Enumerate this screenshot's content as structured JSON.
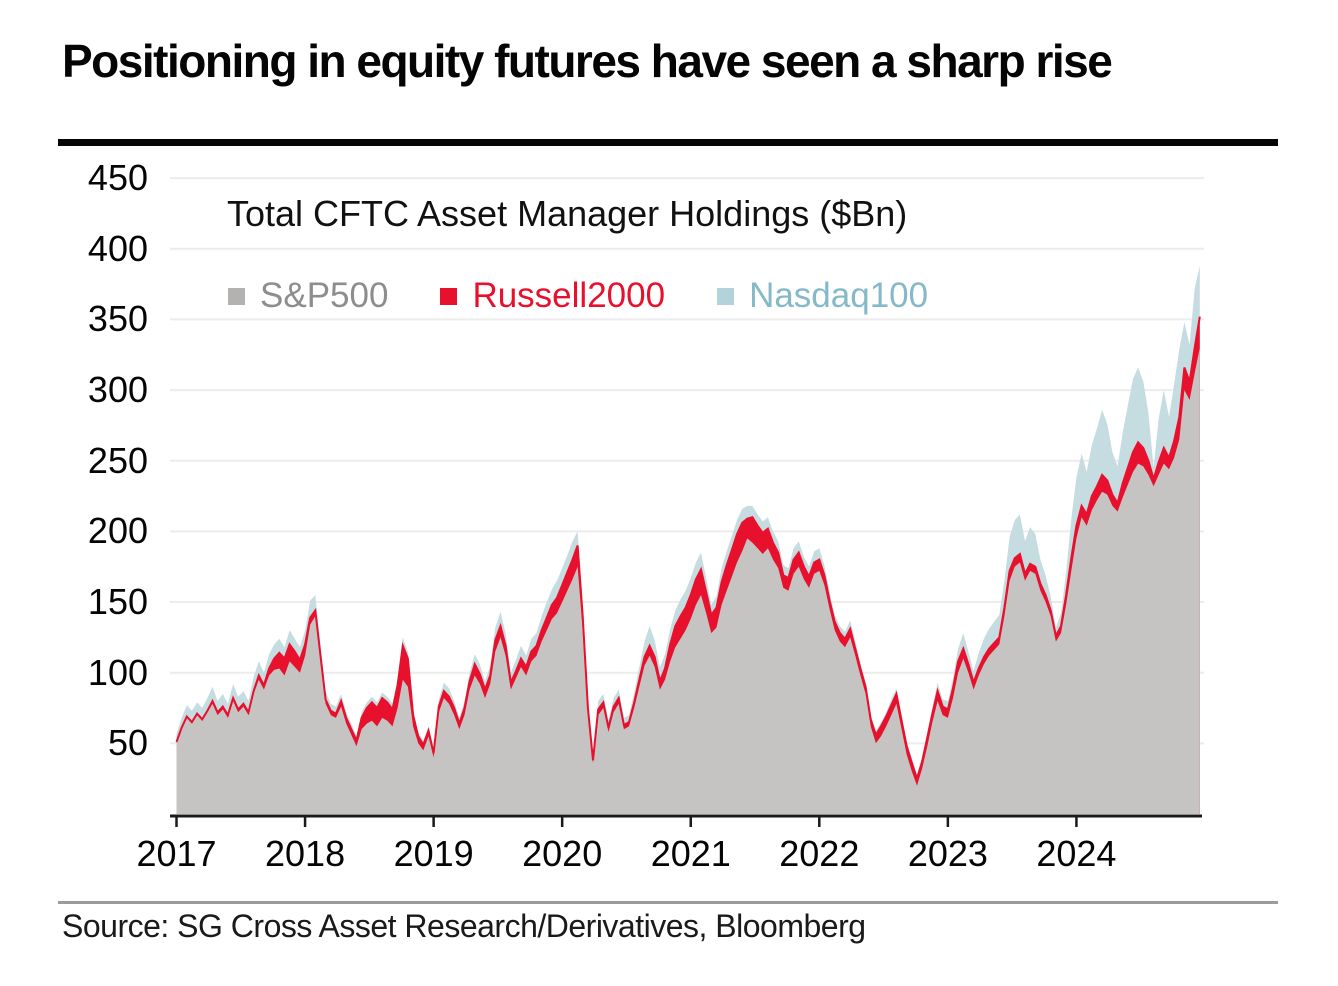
{
  "page": {
    "title": "Positioning in equity futures have seen a sharp rise",
    "source": "Source: SG Cross Asset Research/Derivatives, Bloomberg"
  },
  "legend": {
    "items": [
      {
        "label": "S&P500",
        "swatch_color": "#b4b1b1",
        "text_color": "#8f8c8c"
      },
      {
        "label": "Russell2000",
        "swatch_color": "#e8112d",
        "text_color": "#e8112d"
      },
      {
        "label": "Nasdaq100",
        "swatch_color": "#b3d3da",
        "text_color": "#85b9c7"
      }
    ]
  },
  "chart_data": {
    "type": "area",
    "stacked": true,
    "title": "Total CFTC Asset Manager Holdings ($Bn)",
    "units": "$Bn",
    "series_names": [
      "S&P500",
      "Russell2000",
      "Nasdaq100"
    ],
    "colors": {
      "sp500_fill": "#c6c3c3",
      "russell2000_fill": "#e8112d",
      "russell2000_line": "#e8112d",
      "nasdaq100_fill": "#c5dce1",
      "gridline": "#ececec",
      "axis": "#1a1a1a"
    },
    "x_ticks": [
      "2017",
      "2018",
      "2019",
      "2020",
      "2021",
      "2022",
      "2023",
      "2024"
    ],
    "y_ticks": [
      450,
      400,
      350,
      300,
      250,
      200,
      150,
      100,
      50
    ],
    "ylim": [
      0,
      460
    ],
    "xlim": [
      2017.0,
      2025.0
    ],
    "grid": "horizontal",
    "legend_position": "top-left",
    "points_format": [
      "year_decimal",
      "sp500",
      "russell2000",
      "nasdaq100"
    ],
    "points": [
      [
        2017.0,
        50,
        1,
        6
      ],
      [
        2017.04,
        60,
        1,
        7
      ],
      [
        2017.08,
        68,
        1,
        8
      ],
      [
        2017.12,
        64,
        1,
        8
      ],
      [
        2017.16,
        70,
        1,
        8
      ],
      [
        2017.2,
        66,
        1,
        8
      ],
      [
        2017.24,
        72,
        1,
        9
      ],
      [
        2017.28,
        78,
        2,
        10
      ],
      [
        2017.32,
        70,
        2,
        8
      ],
      [
        2017.36,
        74,
        2,
        9
      ],
      [
        2017.4,
        68,
        2,
        8
      ],
      [
        2017.44,
        80,
        2,
        10
      ],
      [
        2017.48,
        72,
        2,
        9
      ],
      [
        2017.52,
        76,
        2,
        9
      ],
      [
        2017.56,
        70,
        2,
        8
      ],
      [
        2017.6,
        85,
        2,
        10
      ],
      [
        2017.64,
        95,
        3,
        10
      ],
      [
        2017.68,
        88,
        3,
        9
      ],
      [
        2017.72,
        98,
        5,
        10
      ],
      [
        2017.76,
        102,
        8,
        10
      ],
      [
        2017.8,
        103,
        11,
        10
      ],
      [
        2017.84,
        98,
        12,
        8
      ],
      [
        2017.88,
        108,
        12,
        10
      ],
      [
        2017.92,
        104,
        11,
        9
      ],
      [
        2017.96,
        100,
        9,
        9
      ],
      [
        2018.0,
        112,
        8,
        10
      ],
      [
        2018.04,
        134,
        5,
        12
      ],
      [
        2018.08,
        140,
        4,
        11
      ],
      [
        2018.12,
        108,
        4,
        8
      ],
      [
        2018.16,
        78,
        3,
        6
      ],
      [
        2018.2,
        70,
        3,
        5
      ],
      [
        2018.24,
        68,
        3,
        5
      ],
      [
        2018.28,
        76,
        4,
        5
      ],
      [
        2018.32,
        64,
        4,
        4
      ],
      [
        2018.36,
        56,
        4,
        4
      ],
      [
        2018.4,
        48,
        4,
        3
      ],
      [
        2018.44,
        60,
        8,
        4
      ],
      [
        2018.48,
        64,
        11,
        4
      ],
      [
        2018.52,
        66,
        13,
        4
      ],
      [
        2018.56,
        62,
        13,
        4
      ],
      [
        2018.6,
        68,
        14,
        4
      ],
      [
        2018.64,
        66,
        13,
        4
      ],
      [
        2018.68,
        62,
        12,
        4
      ],
      [
        2018.72,
        75,
        16,
        5
      ],
      [
        2018.76,
        95,
        24,
        6
      ],
      [
        2018.8,
        90,
        20,
        5
      ],
      [
        2018.84,
        62,
        8,
        4
      ],
      [
        2018.88,
        50,
        5,
        3
      ],
      [
        2018.92,
        45,
        4,
        3
      ],
      [
        2018.96,
        55,
        4,
        3
      ],
      [
        2019.0,
        40,
        3,
        3
      ],
      [
        2019.04,
        72,
        4,
        5
      ],
      [
        2019.08,
        82,
        5,
        6
      ],
      [
        2019.12,
        78,
        5,
        6
      ],
      [
        2019.16,
        70,
        5,
        5
      ],
      [
        2019.2,
        60,
        4,
        4
      ],
      [
        2019.24,
        70,
        5,
        5
      ],
      [
        2019.28,
        88,
        6,
        6
      ],
      [
        2019.32,
        98,
        8,
        7
      ],
      [
        2019.36,
        92,
        7,
        7
      ],
      [
        2019.4,
        82,
        6,
        6
      ],
      [
        2019.44,
        92,
        6,
        7
      ],
      [
        2019.48,
        115,
        8,
        9
      ],
      [
        2019.52,
        125,
        8,
        10
      ],
      [
        2019.56,
        112,
        7,
        9
      ],
      [
        2019.6,
        88,
        5,
        7
      ],
      [
        2019.64,
        96,
        5,
        8
      ],
      [
        2019.68,
        104,
        6,
        9
      ],
      [
        2019.72,
        98,
        6,
        8
      ],
      [
        2019.76,
        108,
        7,
        9
      ],
      [
        2019.8,
        112,
        7,
        9
      ],
      [
        2019.84,
        122,
        8,
        10
      ],
      [
        2019.88,
        130,
        9,
        11
      ],
      [
        2019.92,
        138,
        10,
        11
      ],
      [
        2019.96,
        142,
        11,
        12
      ],
      [
        2020.0,
        150,
        12,
        12
      ],
      [
        2020.04,
        158,
        13,
        12
      ],
      [
        2020.08,
        166,
        14,
        13
      ],
      [
        2020.12,
        175,
        15,
        10
      ],
      [
        2020.16,
        130,
        10,
        8
      ],
      [
        2020.2,
        70,
        5,
        4
      ],
      [
        2020.24,
        36,
        2,
        3
      ],
      [
        2020.28,
        70,
        4,
        6
      ],
      [
        2020.32,
        75,
        4,
        6
      ],
      [
        2020.36,
        58,
        3,
        5
      ],
      [
        2020.4,
        72,
        4,
        6
      ],
      [
        2020.44,
        78,
        4,
        6
      ],
      [
        2020.48,
        60,
        3,
        5
      ],
      [
        2020.52,
        62,
        3,
        5
      ],
      [
        2020.56,
        75,
        4,
        7
      ],
      [
        2020.6,
        90,
        5,
        9
      ],
      [
        2020.64,
        105,
        6,
        11
      ],
      [
        2020.68,
        112,
        7,
        14
      ],
      [
        2020.72,
        104,
        7,
        12
      ],
      [
        2020.76,
        88,
        6,
        10
      ],
      [
        2020.8,
        95,
        8,
        10
      ],
      [
        2020.84,
        108,
        12,
        11
      ],
      [
        2020.88,
        118,
        15,
        11
      ],
      [
        2020.92,
        124,
        16,
        12
      ],
      [
        2020.96,
        130,
        16,
        12
      ],
      [
        2021.0,
        138,
        17,
        12
      ],
      [
        2021.04,
        148,
        18,
        12
      ],
      [
        2021.08,
        155,
        18,
        12
      ],
      [
        2021.12,
        142,
        15,
        10
      ],
      [
        2021.16,
        128,
        13,
        7
      ],
      [
        2021.2,
        132,
        14,
        8
      ],
      [
        2021.24,
        148,
        16,
        10
      ],
      [
        2021.28,
        158,
        18,
        10
      ],
      [
        2021.32,
        168,
        19,
        10
      ],
      [
        2021.36,
        178,
        20,
        10
      ],
      [
        2021.4,
        186,
        20,
        10
      ],
      [
        2021.44,
        195,
        14,
        9
      ],
      [
        2021.48,
        192,
        18,
        8
      ],
      [
        2021.52,
        188,
        16,
        8
      ],
      [
        2021.56,
        184,
        15,
        8
      ],
      [
        2021.6,
        188,
        14,
        8
      ],
      [
        2021.64,
        180,
        12,
        8
      ],
      [
        2021.68,
        174,
        11,
        8
      ],
      [
        2021.72,
        160,
        9,
        7
      ],
      [
        2021.76,
        158,
        9,
        7
      ],
      [
        2021.8,
        170,
        10,
        8
      ],
      [
        2021.84,
        175,
        10,
        8
      ],
      [
        2021.88,
        166,
        9,
        7
      ],
      [
        2021.92,
        160,
        8,
        7
      ],
      [
        2021.96,
        170,
        8,
        8
      ],
      [
        2022.0,
        172,
        8,
        8
      ],
      [
        2022.04,
        162,
        7,
        7
      ],
      [
        2022.08,
        145,
        6,
        6
      ],
      [
        2022.12,
        130,
        6,
        5
      ],
      [
        2022.16,
        122,
        6,
        5
      ],
      [
        2022.2,
        118,
        6,
        5
      ],
      [
        2022.24,
        125,
        6,
        6
      ],
      [
        2022.28,
        112,
        5,
        5
      ],
      [
        2022.32,
        98,
        5,
        4
      ],
      [
        2022.36,
        85,
        5,
        3
      ],
      [
        2022.4,
        62,
        5,
        3
      ],
      [
        2022.44,
        50,
        6,
        3
      ],
      [
        2022.48,
        55,
        7,
        3
      ],
      [
        2022.52,
        62,
        7,
        3
      ],
      [
        2022.56,
        70,
        7,
        4
      ],
      [
        2022.6,
        78,
        7,
        4
      ],
      [
        2022.64,
        60,
        6,
        3
      ],
      [
        2022.68,
        42,
        6,
        3
      ],
      [
        2022.72,
        30,
        6,
        3
      ],
      [
        2022.76,
        20,
        5,
        3
      ],
      [
        2022.8,
        32,
        5,
        3
      ],
      [
        2022.84,
        48,
        6,
        4
      ],
      [
        2022.88,
        65,
        6,
        5
      ],
      [
        2022.92,
        80,
        7,
        6
      ],
      [
        2022.96,
        70,
        6,
        5
      ],
      [
        2023.0,
        68,
        6,
        6
      ],
      [
        2023.04,
        82,
        7,
        7
      ],
      [
        2023.08,
        100,
        8,
        9
      ],
      [
        2023.12,
        110,
        7,
        11
      ],
      [
        2023.16,
        100,
        6,
        9
      ],
      [
        2023.2,
        88,
        5,
        8
      ],
      [
        2023.24,
        98,
        5,
        11
      ],
      [
        2023.28,
        106,
        5,
        13
      ],
      [
        2023.32,
        112,
        5,
        14
      ],
      [
        2023.36,
        116,
        5,
        15
      ],
      [
        2023.4,
        120,
        5,
        16
      ],
      [
        2023.44,
        140,
        6,
        19
      ],
      [
        2023.48,
        165,
        7,
        24
      ],
      [
        2023.52,
        175,
        6,
        27
      ],
      [
        2023.56,
        178,
        6,
        28
      ],
      [
        2023.6,
        165,
        5,
        23
      ],
      [
        2023.64,
        172,
        5,
        26
      ],
      [
        2023.68,
        170,
        5,
        23
      ],
      [
        2023.72,
        158,
        5,
        17
      ],
      [
        2023.76,
        150,
        5,
        14
      ],
      [
        2023.8,
        140,
        4,
        10
      ],
      [
        2023.84,
        122,
        4,
        6
      ],
      [
        2023.88,
        128,
        5,
        9
      ],
      [
        2023.92,
        148,
        7,
        16
      ],
      [
        2023.96,
        172,
        9,
        28
      ],
      [
        2024.0,
        195,
        9,
        34
      ],
      [
        2024.04,
        210,
        8,
        37
      ],
      [
        2024.08,
        204,
        8,
        30
      ],
      [
        2024.12,
        215,
        10,
        36
      ],
      [
        2024.16,
        222,
        10,
        41
      ],
      [
        2024.2,
        228,
        12,
        46
      ],
      [
        2024.24,
        226,
        10,
        40
      ],
      [
        2024.28,
        218,
        8,
        30
      ],
      [
        2024.32,
        214,
        6,
        26
      ],
      [
        2024.36,
        224,
        10,
        36
      ],
      [
        2024.4,
        233,
        12,
        44
      ],
      [
        2024.44,
        242,
        14,
        52
      ],
      [
        2024.48,
        248,
        15,
        53
      ],
      [
        2024.52,
        246,
        13,
        47
      ],
      [
        2024.56,
        240,
        10,
        34
      ],
      [
        2024.6,
        232,
        5,
        8
      ],
      [
        2024.64,
        240,
        9,
        31
      ],
      [
        2024.68,
        248,
        11,
        41
      ],
      [
        2024.72,
        244,
        8,
        29
      ],
      [
        2024.76,
        252,
        12,
        40
      ],
      [
        2024.8,
        265,
        16,
        48
      ],
      [
        2024.84,
        300,
        16,
        32
      ],
      [
        2024.88,
        293,
        13,
        26
      ],
      [
        2024.92,
        312,
        18,
        42
      ],
      [
        2024.96,
        330,
        22,
        36
      ]
    ]
  }
}
